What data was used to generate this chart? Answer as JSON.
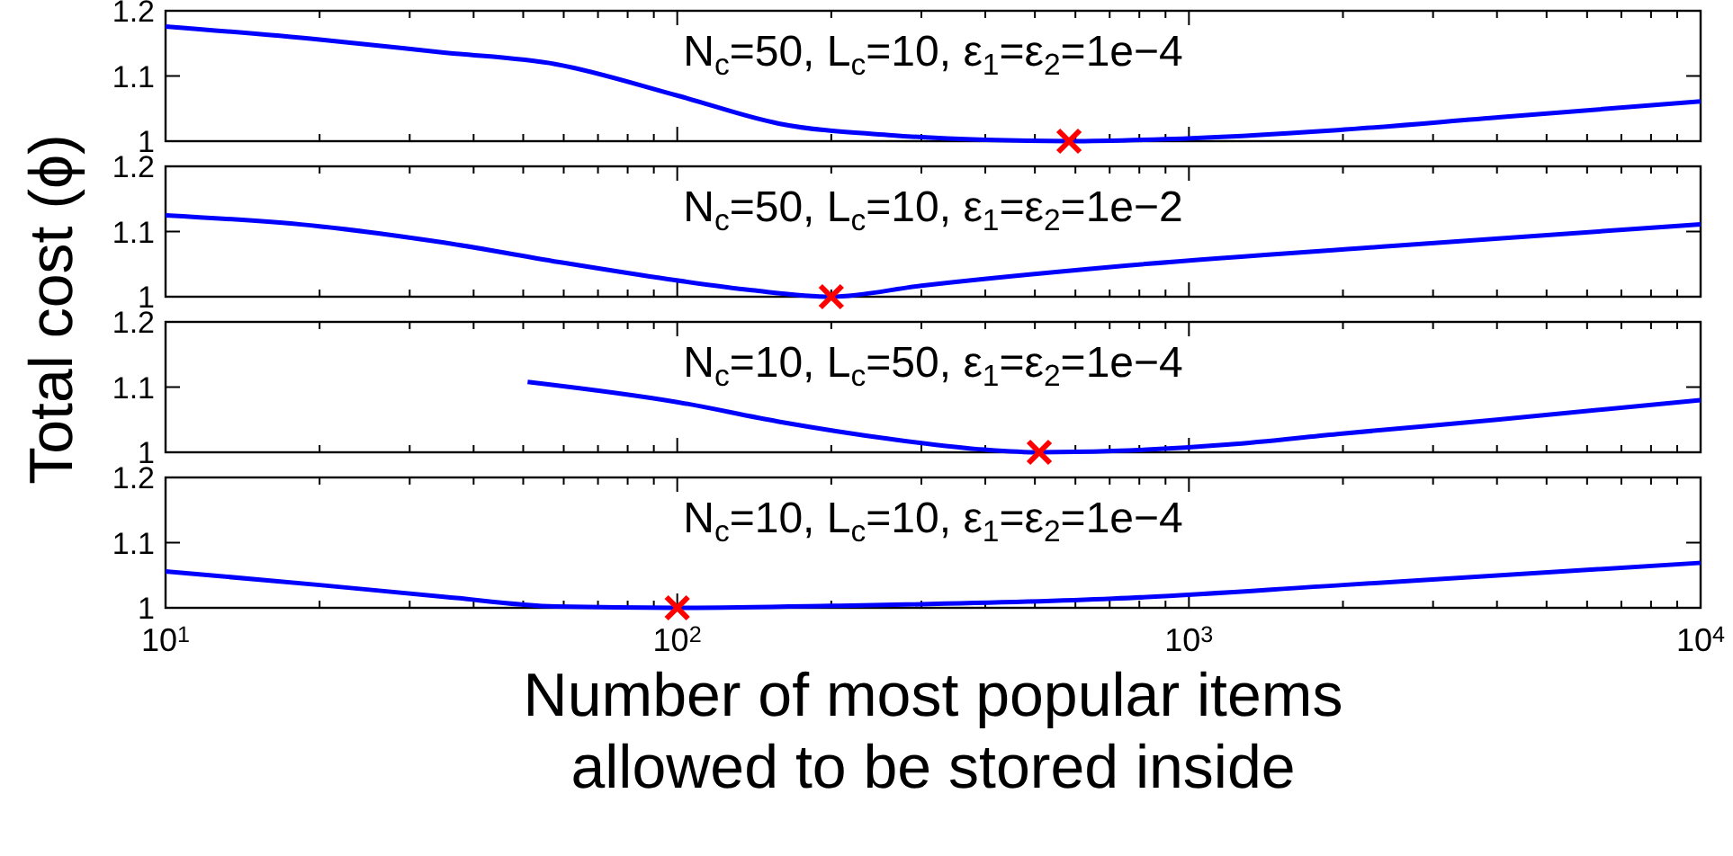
{
  "chart_data": [
    {
      "type": "line",
      "ylabel": "Total cost (ϕ)",
      "annotations": [
        "N$_{c}$=50, L$_{c}$=10, ε$_{1}$=ε$_{2}$=1e−4"
      ],
      "log": "x",
      "xlim": [
        10,
        10000
      ],
      "ylim": [
        1,
        1.2
      ],
      "yticks": [
        1,
        1.1,
        1.2
      ],
      "tick_labels": "y",
      "xticks": [
        {
          "value": 10,
          "label": null
        },
        {
          "value": 20,
          "label": null
        },
        {
          "value": 30,
          "label": null
        },
        {
          "value": 40,
          "label": null
        },
        {
          "value": 50,
          "label": null
        },
        {
          "value": 60,
          "label": null
        },
        {
          "value": 70,
          "label": null
        },
        {
          "value": 80,
          "label": null
        },
        {
          "value": 90,
          "label": null
        },
        {
          "value": 100,
          "label": null
        },
        {
          "value": 200,
          "label": null
        },
        {
          "value": 300,
          "label": null
        },
        {
          "value": 400,
          "label": null
        },
        {
          "value": 500,
          "label": null
        },
        {
          "value": 600,
          "label": null
        },
        {
          "value": 700,
          "label": null
        },
        {
          "value": 800,
          "label": null
        },
        {
          "value": 900,
          "label": null
        },
        {
          "value": 1000,
          "label": null
        },
        {
          "value": 2000,
          "label": null
        },
        {
          "value": 3000,
          "label": null
        },
        {
          "value": 4000,
          "label": null
        },
        {
          "value": 5000,
          "label": null
        },
        {
          "value": 6000,
          "label": null
        },
        {
          "value": 7000,
          "label": null
        },
        {
          "value": 8000,
          "label": null
        },
        {
          "value": 9000,
          "label": null
        },
        {
          "value": 10000,
          "label": null
        }
      ],
      "series": [
        {
          "type": "line",
          "color": "#0000ff",
          "marker": "none",
          "line_style": "solid",
          "x": [
            10,
            20,
            35,
            58,
            100,
            158,
            263,
            400,
            583,
            900,
            1950,
            4070,
            10000
          ],
          "values": [
            1.176,
            1.156,
            1.136,
            1.118,
            1.07,
            1.027,
            1.009,
            1.002,
            1.0,
            1.003,
            1.017,
            1.037,
            1.061
          ]
        },
        {
          "type": "scatter",
          "color": "#ff0000",
          "marker": "cross",
          "x": [
            583
          ],
          "values": [
            1.0
          ]
        }
      ]
    },
    {
      "type": "line",
      "annotations": [
        "N$_{c}$=50,  L$_{c}$=10, ε$_{1}$=ε$_{2}$=1e−2"
      ],
      "log": "x",
      "xlim": [
        10,
        10000
      ],
      "ylim": [
        1,
        1.2
      ],
      "yticks": [
        1,
        1.1,
        1.2
      ],
      "tick_labels": "y",
      "xticks": [
        {
          "value": 10,
          "label": null
        },
        {
          "value": 20,
          "label": null
        },
        {
          "value": 30,
          "label": null
        },
        {
          "value": 40,
          "label": null
        },
        {
          "value": 50,
          "label": null
        },
        {
          "value": 60,
          "label": null
        },
        {
          "value": 70,
          "label": null
        },
        {
          "value": 80,
          "label": null
        },
        {
          "value": 90,
          "label": null
        },
        {
          "value": 100,
          "label": null
        },
        {
          "value": 200,
          "label": null
        },
        {
          "value": 300,
          "label": null
        },
        {
          "value": 400,
          "label": null
        },
        {
          "value": 500,
          "label": null
        },
        {
          "value": 600,
          "label": null
        },
        {
          "value": 700,
          "label": null
        },
        {
          "value": 800,
          "label": null
        },
        {
          "value": 900,
          "label": null
        },
        {
          "value": 1000,
          "label": null
        },
        {
          "value": 2000,
          "label": null
        },
        {
          "value": 3000,
          "label": null
        },
        {
          "value": 4000,
          "label": null
        },
        {
          "value": 5000,
          "label": null
        },
        {
          "value": 6000,
          "label": null
        },
        {
          "value": 7000,
          "label": null
        },
        {
          "value": 8000,
          "label": null
        },
        {
          "value": 9000,
          "label": null
        },
        {
          "value": 10000,
          "label": null
        }
      ],
      "series": [
        {
          "type": "line",
          "color": "#0000ff",
          "marker": "none",
          "line_style": "solid",
          "x": [
            10,
            20,
            35,
            60,
            96,
            140,
            200,
            300,
            710,
            2500,
            10000
          ],
          "values": [
            1.125,
            1.108,
            1.083,
            1.052,
            1.027,
            1.01,
            1.0,
            1.017,
            1.046,
            1.078,
            1.111
          ]
        },
        {
          "type": "scatter",
          "color": "#ff0000",
          "marker": "cross",
          "x": [
            200
          ],
          "values": [
            1.0
          ]
        }
      ]
    },
    {
      "type": "line",
      "annotations": [
        "N$_{c}$=10,  L$_{c}$=50, ε$_{1}$=ε$_{2}$=1e−4"
      ],
      "log": "x",
      "xlim": [
        10,
        10000
      ],
      "ylim": [
        1,
        1.2
      ],
      "yticks": [
        1,
        1.1,
        1.2
      ],
      "tick_labels": "y",
      "xticks": [
        {
          "value": 10,
          "label": null
        },
        {
          "value": 20,
          "label": null
        },
        {
          "value": 30,
          "label": null
        },
        {
          "value": 40,
          "label": null
        },
        {
          "value": 50,
          "label": null
        },
        {
          "value": 60,
          "label": null
        },
        {
          "value": 70,
          "label": null
        },
        {
          "value": 80,
          "label": null
        },
        {
          "value": 90,
          "label": null
        },
        {
          "value": 100,
          "label": null
        },
        {
          "value": 200,
          "label": null
        },
        {
          "value": 300,
          "label": null
        },
        {
          "value": 400,
          "label": null
        },
        {
          "value": 500,
          "label": null
        },
        {
          "value": 600,
          "label": null
        },
        {
          "value": 700,
          "label": null
        },
        {
          "value": 800,
          "label": null
        },
        {
          "value": 900,
          "label": null
        },
        {
          "value": 1000,
          "label": null
        },
        {
          "value": 2000,
          "label": null
        },
        {
          "value": 3000,
          "label": null
        },
        {
          "value": 4000,
          "label": null
        },
        {
          "value": 5000,
          "label": null
        },
        {
          "value": 6000,
          "label": null
        },
        {
          "value": 7000,
          "label": null
        },
        {
          "value": 8000,
          "label": null
        },
        {
          "value": 9000,
          "label": null
        },
        {
          "value": 10000,
          "label": null
        }
      ],
      "series": [
        {
          "type": "line",
          "color": "#0000ff",
          "marker": "none",
          "line_style": "solid",
          "x": [
            51,
            100,
            158,
            263,
            400,
            510,
            710,
            1200,
            1950,
            4000,
            10000
          ],
          "values": [
            1.108,
            1.077,
            1.047,
            1.02,
            1.004,
            1.0,
            1.002,
            1.012,
            1.028,
            1.05,
            1.08
          ]
        },
        {
          "type": "scatter",
          "color": "#ff0000",
          "marker": "cross",
          "x": [
            510
          ],
          "values": [
            1.0
          ]
        }
      ]
    },
    {
      "type": "line",
      "xlabel": "Number of most popular items\nallowed to be stored inside",
      "annotations": [
        "N$_{c}$=10, L$_{c}$=10, ε$_{1}$=ε$_{2}$=1e−4"
      ],
      "log": "x",
      "xlim": [
        10,
        10000
      ],
      "ylim": [
        1,
        1.2
      ],
      "yticks": [
        1,
        1.1,
        1.2
      ],
      "xticks": [
        {
          "value": 10,
          "label": "10$^{1}$"
        },
        {
          "value": 20,
          "label": null
        },
        {
          "value": 30,
          "label": null
        },
        {
          "value": 40,
          "label": null
        },
        {
          "value": 50,
          "label": null
        },
        {
          "value": 60,
          "label": null
        },
        {
          "value": 70,
          "label": null
        },
        {
          "value": 80,
          "label": null
        },
        {
          "value": 90,
          "label": null
        },
        {
          "value": 100,
          "label": "10$^{2}$"
        },
        {
          "value": 200,
          "label": null
        },
        {
          "value": 300,
          "label": null
        },
        {
          "value": 400,
          "label": null
        },
        {
          "value": 500,
          "label": null
        },
        {
          "value": 600,
          "label": null
        },
        {
          "value": 700,
          "label": null
        },
        {
          "value": 800,
          "label": null
        },
        {
          "value": 900,
          "label": null
        },
        {
          "value": 1000,
          "label": "10$^{3}$"
        },
        {
          "value": 2000,
          "label": null
        },
        {
          "value": 3000,
          "label": null
        },
        {
          "value": 4000,
          "label": null
        },
        {
          "value": 5000,
          "label": null
        },
        {
          "value": 6000,
          "label": null
        },
        {
          "value": 7000,
          "label": null
        },
        {
          "value": 8000,
          "label": null
        },
        {
          "value": 9000,
          "label": null
        },
        {
          "value": 10000,
          "label": "10$^{4}$"
        }
      ],
      "series": [
        {
          "type": "line",
          "color": "#0000ff",
          "marker": "none",
          "line_style": "solid",
          "x": [
            10,
            20,
            35,
            58,
            100,
            200,
            710,
            2000,
            10000
          ],
          "values": [
            1.056,
            1.035,
            1.017,
            1.002,
            1.0,
            1.003,
            1.014,
            1.035,
            1.069
          ]
        },
        {
          "type": "scatter",
          "color": "#ff0000",
          "marker": "cross",
          "x": [
            100
          ],
          "values": [
            1.0
          ]
        }
      ]
    }
  ]
}
